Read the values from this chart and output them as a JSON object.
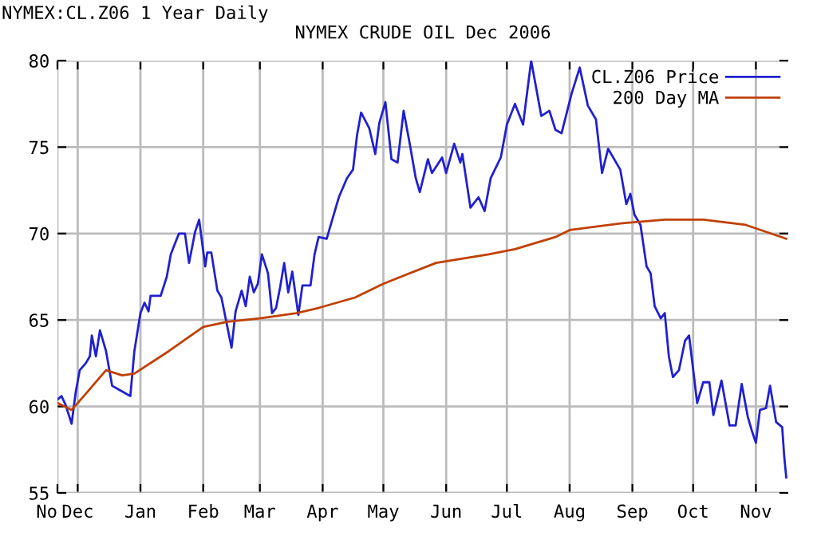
{
  "chart_data": {
    "type": "line",
    "title": "NYMEX CRUDE OIL Dec 2006",
    "annotations": [
      "NYMEX:CL.Z06 1 Year Daily"
    ],
    "xlim": [
      "2005-11-21",
      "2006-11-17"
    ],
    "xticks": [
      {
        "value": "2005-11-21",
        "label": "No"
      },
      {
        "value": "2005-12-01",
        "label": "Dec"
      },
      {
        "value": "2006-01-01",
        "label": "Jan"
      },
      {
        "value": "2006-02-01",
        "label": "Feb"
      },
      {
        "value": "2006-03-01",
        "label": "Mar"
      },
      {
        "value": "2006-04-01",
        "label": "Apr"
      },
      {
        "value": "2006-05-01",
        "label": "May"
      },
      {
        "value": "2006-06-01",
        "label": "Jun"
      },
      {
        "value": "2006-07-01",
        "label": "Jul"
      },
      {
        "value": "2006-08-01",
        "label": "Aug"
      },
      {
        "value": "2006-09-01",
        "label": "Sep"
      },
      {
        "value": "2006-10-01",
        "label": "Oct"
      },
      {
        "value": "2006-11-01",
        "label": "Nov"
      }
    ],
    "ylim": [
      55,
      80
    ],
    "yticks": [
      55,
      60,
      65,
      70,
      75,
      80
    ],
    "grid": true,
    "legend": "top right",
    "marker": "none",
    "line_style": "solid",
    "series": [
      {
        "name": "CL.Z06 Price",
        "color": "#2020d0",
        "x": [
          "2005-11-21",
          "2005-11-23",
          "2005-11-25",
          "2005-11-28",
          "2005-11-30",
          "2005-12-02",
          "2005-12-05",
          "2005-12-07",
          "2005-12-08",
          "2005-12-10",
          "2005-12-12",
          "2005-12-15",
          "2005-12-18",
          "2005-12-21",
          "2005-12-24",
          "2005-12-27",
          "2005-12-29",
          "2006-01-01",
          "2006-01-03",
          "2006-01-05",
          "2006-01-06",
          "2006-01-11",
          "2006-01-14",
          "2006-01-16",
          "2006-01-20",
          "2006-01-23",
          "2006-01-25",
          "2006-01-28",
          "2006-01-30",
          "2006-02-02",
          "2006-02-03",
          "2006-02-05",
          "2006-02-08",
          "2006-02-10",
          "2006-02-15",
          "2006-02-17",
          "2006-02-20",
          "2006-02-22",
          "2006-02-24",
          "2006-02-26",
          "2006-02-28",
          "2006-03-02",
          "2006-03-05",
          "2006-03-07",
          "2006-03-09",
          "2006-03-11",
          "2006-03-13",
          "2006-03-15",
          "2006-03-17",
          "2006-03-20",
          "2006-03-22",
          "2006-03-26",
          "2006-03-28",
          "2006-03-30",
          "2006-04-03",
          "2006-04-05",
          "2006-04-09",
          "2006-04-13",
          "2006-04-16",
          "2006-04-18",
          "2006-04-20",
          "2006-04-24",
          "2006-04-27",
          "2006-04-29",
          "2006-05-02",
          "2006-05-05",
          "2006-05-08",
          "2006-05-11",
          "2006-05-14",
          "2006-05-17",
          "2006-05-19",
          "2006-05-23",
          "2006-05-25",
          "2006-05-30",
          "2006-06-01",
          "2006-06-05",
          "2006-06-08",
          "2006-06-09",
          "2006-06-13",
          "2006-06-17",
          "2006-06-20",
          "2006-06-23",
          "2006-06-28",
          "2006-07-01",
          "2006-07-05",
          "2006-07-09",
          "2006-07-13",
          "2006-07-18",
          "2006-07-22",
          "2006-07-25",
          "2006-07-28",
          "2006-08-02",
          "2006-08-06",
          "2006-08-10",
          "2006-08-14",
          "2006-08-17",
          "2006-08-20",
          "2006-08-26",
          "2006-08-29",
          "2006-08-31",
          "2006-09-02",
          "2006-09-05",
          "2006-09-08",
          "2006-09-10",
          "2006-09-12",
          "2006-09-15",
          "2006-09-17",
          "2006-09-19",
          "2006-09-21",
          "2006-09-24",
          "2006-09-27",
          "2006-09-29",
          "2006-10-03",
          "2006-10-06",
          "2006-10-09",
          "2006-10-11",
          "2006-10-15",
          "2006-10-19",
          "2006-10-22",
          "2006-10-25",
          "2006-10-28",
          "2006-10-30",
          "2006-11-01",
          "2006-11-03",
          "2006-11-06",
          "2006-11-08",
          "2006-11-11",
          "2006-11-14",
          "2006-11-15",
          "2006-11-16"
        ],
        "values": [
          60.4,
          60.6,
          60.1,
          59.0,
          60.8,
          62.1,
          62.5,
          62.9,
          64.1,
          62.9,
          64.4,
          63.2,
          61.2,
          61.0,
          60.8,
          60.6,
          63.2,
          65.4,
          66.0,
          65.5,
          66.4,
          66.4,
          67.5,
          68.8,
          70.0,
          70.0,
          68.3,
          70.1,
          70.8,
          68.1,
          68.9,
          68.9,
          66.7,
          66.3,
          63.4,
          65.5,
          66.7,
          65.8,
          67.5,
          66.6,
          67.1,
          68.8,
          67.7,
          65.4,
          65.7,
          66.9,
          68.3,
          66.6,
          67.8,
          65.3,
          67.0,
          67.0,
          68.8,
          69.8,
          69.7,
          70.5,
          72.1,
          73.2,
          73.7,
          75.7,
          77.0,
          76.1,
          74.6,
          76.4,
          77.6,
          74.3,
          74.1,
          77.1,
          75.2,
          73.2,
          72.4,
          74.3,
          73.5,
          74.4,
          73.5,
          75.2,
          74.1,
          74.6,
          71.5,
          72.1,
          71.3,
          73.2,
          74.4,
          76.3,
          77.5,
          76.3,
          80.0,
          76.8,
          77.1,
          76.0,
          75.8,
          78.1,
          79.6,
          77.4,
          76.6,
          73.5,
          74.9,
          73.7,
          71.7,
          72.3,
          71.1,
          70.5,
          68.1,
          67.7,
          65.8,
          65.1,
          65.4,
          62.9,
          61.7,
          62.1,
          63.8,
          64.1,
          60.2,
          61.4,
          61.4,
          59.5,
          61.5,
          58.9,
          58.9,
          61.3,
          59.4,
          58.6,
          57.9,
          59.8,
          59.9,
          61.2,
          59.1,
          58.8,
          57.1,
          55.9
        ]
      },
      {
        "name": "200 Day MA",
        "color": "#c04000",
        "x": [
          "2005-11-21",
          "2005-11-28",
          "2005-12-04",
          "2005-12-15",
          "2005-12-23",
          "2005-12-29",
          "2006-01-15",
          "2006-02-01",
          "2006-02-13",
          "2006-03-01",
          "2006-03-19",
          "2006-03-30",
          "2006-04-17",
          "2006-05-01",
          "2006-05-27",
          "2006-06-22",
          "2006-07-05",
          "2006-07-25",
          "2006-08-01",
          "2006-08-27",
          "2006-09-17",
          "2006-10-06",
          "2006-10-27",
          "2006-11-16"
        ],
        "values": [
          60.2,
          59.8,
          60.6,
          62.1,
          61.8,
          61.9,
          63.2,
          64.6,
          64.9,
          65.1,
          65.4,
          65.7,
          66.3,
          67.1,
          68.3,
          68.8,
          69.1,
          69.8,
          70.2,
          70.6,
          70.8,
          70.8,
          70.5,
          69.7
        ]
      }
    ]
  }
}
